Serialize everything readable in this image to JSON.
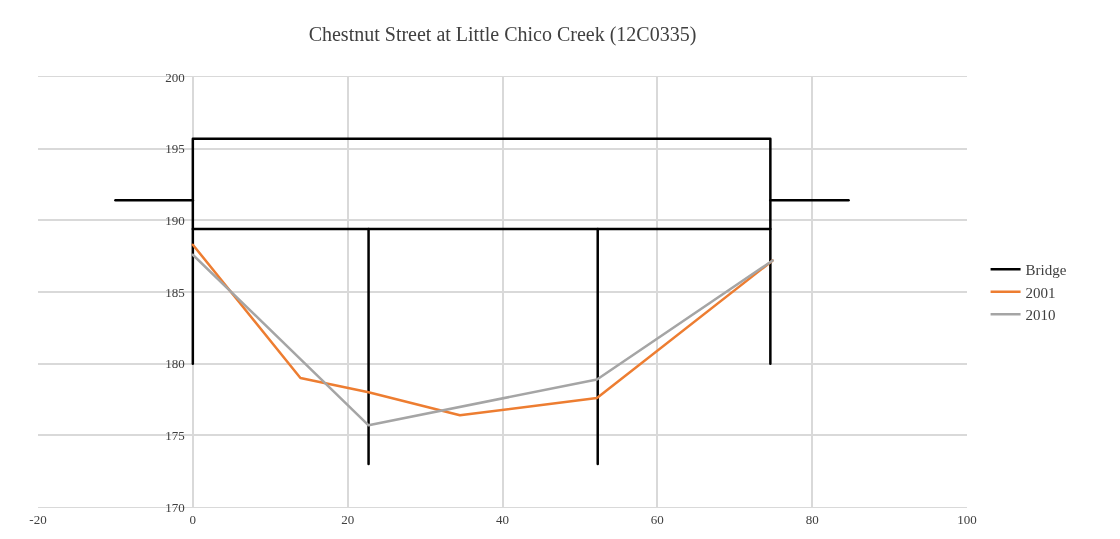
{
  "chart_data": {
    "type": "line",
    "title": "Chestnut Street at Little Chico Creek (12C0335)",
    "series": [
      {
        "name": "Bridge",
        "color": "#000000",
        "x": [
          -10,
          0,
          null,
          0,
          0,
          74.6,
          74.6,
          null,
          74.6,
          84.7,
          null,
          0,
          74.6,
          null,
          22.7,
          22.7,
          null,
          52.3,
          52.3
        ],
        "values": [
          191.4,
          191.4,
          null,
          180,
          195.7,
          195.7,
          180,
          null,
          191.4,
          191.4,
          null,
          189.4,
          189.4,
          null,
          189.4,
          173,
          null,
          189.4,
          173
        ]
      },
      {
        "name": "2001",
        "color": "#ed7d31",
        "x": [
          0,
          13.9,
          22.7,
          34.5,
          52.2,
          74.9
        ],
        "values": [
          188.3,
          179.0,
          178.0,
          176.4,
          177.6,
          187.2
        ]
      },
      {
        "name": "2010",
        "color": "#a5a5a5",
        "x": [
          0,
          22.7,
          52.2,
          74.9
        ],
        "values": [
          187.6,
          175.7,
          178.9,
          187.2
        ]
      }
    ],
    "xlim": [
      -20,
      100
    ],
    "xticks": [
      -20,
      0,
      20,
      40,
      60,
      80,
      100
    ],
    "ylim": [
      170,
      200
    ],
    "yticks": [
      170,
      175,
      180,
      185,
      190,
      195,
      200
    ],
    "grid": true,
    "legend": "right",
    "marker": "none",
    "line_style": "solid"
  }
}
